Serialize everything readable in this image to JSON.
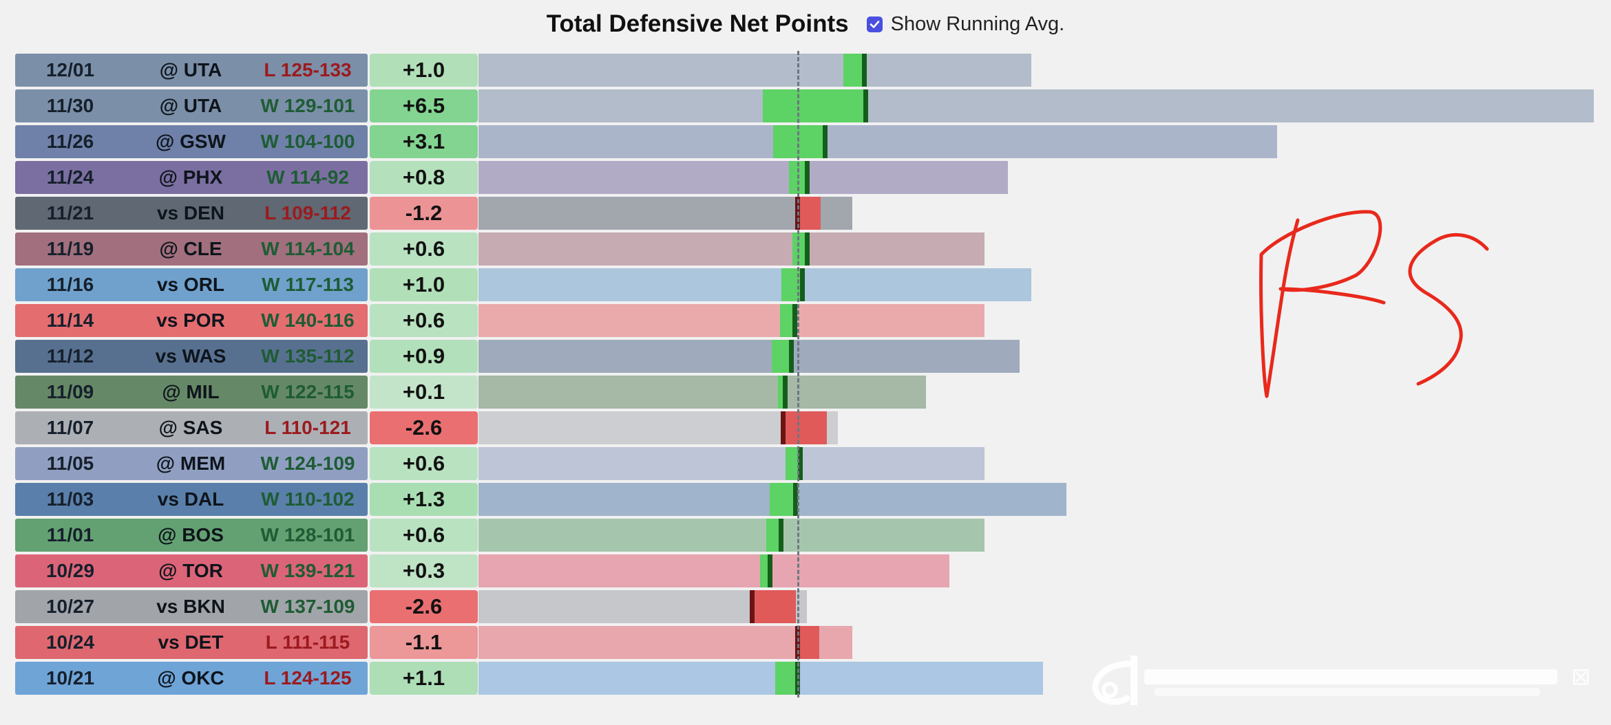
{
  "header": {
    "title": "Total Defensive Net Points",
    "toggle_label": "Show Running Avg.",
    "toggle_checked": true
  },
  "chart_data": {
    "type": "bar",
    "title": "Total Defensive Net Points",
    "series_label": "Show Running Avg.",
    "rows": [
      {
        "date": "12/01",
        "opponent": "@ UTA",
        "result": "L 125-133",
        "value": "+1.0",
        "net": 1.0,
        "team_color": "#5a7394",
        "row_bar": -0.3,
        "running_avg": 1.14
      },
      {
        "date": "11/30",
        "opponent": "@ UTA",
        "result": "W 129-101",
        "value": "+6.5",
        "net": 6.5,
        "team_color": "#5a7394",
        "row_bar": 1.4,
        "running_avg": 1.16
      },
      {
        "date": "11/26",
        "opponent": "@ GSW",
        "result": "W 104-100",
        "value": "+3.1",
        "net": 3.1,
        "team_color": "#4a6294",
        "row_bar": 0.4,
        "running_avg": 0.47
      },
      {
        "date": "11/24",
        "opponent": "@ PHX",
        "result": "W 114-92",
        "value": "+0.8",
        "net": 0.8,
        "team_color": "#5a4a8a",
        "row_bar": 0.05,
        "running_avg": 0.16
      },
      {
        "date": "11/21",
        "opponent": "vs DEN",
        "result": "L 109-112",
        "value": "-1.2",
        "net": -1.2,
        "team_color": "#36414f",
        "row_bar": 0.09,
        "running_avg": 0.0
      },
      {
        "date": "11/19",
        "opponent": "@ CLE",
        "result": "W 114-104",
        "value": "+0.6",
        "net": 0.6,
        "team_color": "#8b4a5c",
        "row_bar": 0.04,
        "running_avg": 0.16
      },
      {
        "date": "11/16",
        "opponent": "vs ORL",
        "result": "W 117-113",
        "value": "+1.0",
        "net": 1.0,
        "team_color": "#4b8ac2",
        "row_bar": -0.07,
        "running_avg": 0.08
      },
      {
        "date": "11/14",
        "opponent": "vs POR",
        "result": "W 140-116",
        "value": "+0.6",
        "net": 0.6,
        "team_color": "#e0484c",
        "row_bar": -0.12,
        "running_avg": -0.05
      },
      {
        "date": "11/12",
        "opponent": "vs WAS",
        "result": "W 135-112",
        "value": "+0.9",
        "net": 0.9,
        "team_color": "#2d4b74",
        "row_bar": -0.21,
        "running_avg": -0.11
      },
      {
        "date": "11/09",
        "opponent": "@ MIL",
        "result": "W 122-115",
        "value": "+0.1",
        "net": 0.1,
        "team_color": "#3d6b3f",
        "row_bar": -0.26,
        "running_avg": -0.21
      },
      {
        "date": "11/07",
        "opponent": "@ SAS",
        "result": "L 110-121",
        "value": "-2.6",
        "net": -2.6,
        "team_color": "#999ea4",
        "row_bar": 0.0,
        "running_avg": -0.25
      },
      {
        "date": "11/05",
        "opponent": "@ MEM",
        "result": "W 124-109",
        "value": "+0.6",
        "net": 0.6,
        "team_color": "#7488b4",
        "row_bar": -0.06,
        "running_avg": 0.05
      },
      {
        "date": "11/03",
        "opponent": "vs DAL",
        "result": "W 110-102",
        "value": "+1.3",
        "net": 1.3,
        "team_color": "#2f5f96",
        "row_bar": -0.3,
        "running_avg": -0.04
      },
      {
        "date": "11/01",
        "opponent": "@ BOS",
        "result": "W 128-101",
        "value": "+0.6",
        "net": 0.6,
        "team_color": "#3b8b4e",
        "row_bar": -0.5,
        "running_avg": -0.28
      },
      {
        "date": "10/29",
        "opponent": "@ TOR",
        "result": "W 139-121",
        "value": "+0.3",
        "net": 0.3,
        "team_color": "#d63c56",
        "row_bar": -0.78,
        "running_avg": -0.47
      },
      {
        "date": "10/27",
        "opponent": "vs BKN",
        "result": "W 137-109",
        "value": "-2.6",
        "net": -2.6,
        "team_color": "#8a8e94",
        "row_bar": 0.0,
        "running_avg": -0.78
      },
      {
        "date": "10/24",
        "opponent": "vs DET",
        "result": "L 111-115",
        "value": "-1.1",
        "net": -1.1,
        "team_color": "#d8404c",
        "row_bar": 1.0,
        "running_avg": 0.0
      },
      {
        "date": "10/21",
        "opponent": "@ OKC",
        "result": "L 124-125",
        "value": "+1.1",
        "net": 1.1,
        "team_color": "#4a8ed0",
        "row_bar": 1.0,
        "running_avg": 0.0
      }
    ]
  }
}
